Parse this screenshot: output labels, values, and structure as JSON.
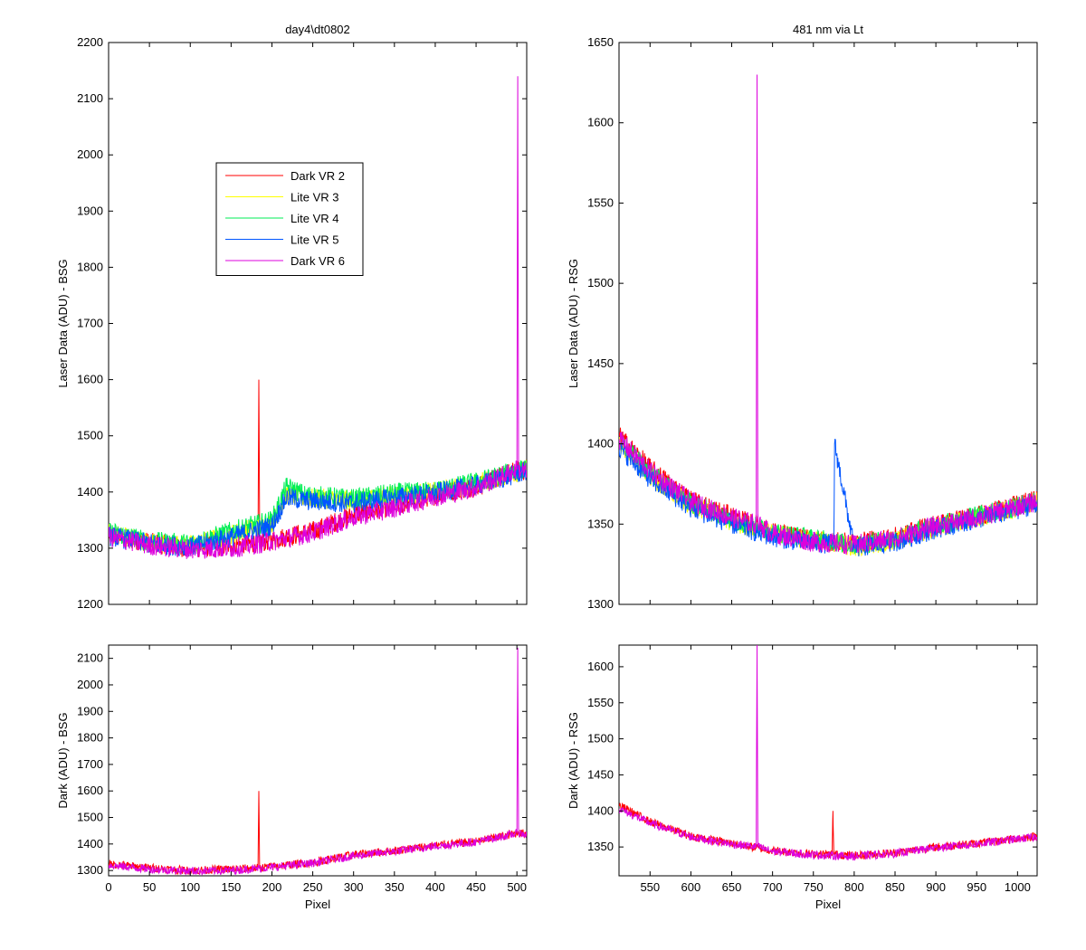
{
  "chart_data": [
    {
      "type": "line",
      "title": "day4\\dt0802",
      "xlabel": "",
      "ylabel": "Laser Data (ADU) - BSG",
      "xlim": [
        0,
        512
      ],
      "ylim": [
        1200,
        2200
      ],
      "xticks": [
        0,
        50,
        100,
        150,
        200,
        250,
        300,
        350,
        400,
        450,
        500
      ],
      "yticks": [
        1200,
        1300,
        1400,
        1500,
        1600,
        1700,
        1800,
        1900,
        2000,
        2100,
        2200
      ],
      "show_xtick_labels": false,
      "legend": {
        "placement": "upper-left-center",
        "entries": [
          "Dark VR 2",
          "Lite VR 3",
          "Lite VR 4",
          "Lite VR 5",
          "Dark VR 6"
        ]
      },
      "series": [
        {
          "name": "Dark VR 2",
          "color": "#ff0000",
          "x": [
            0,
            50,
            100,
            150,
            183,
            184,
            185,
            200,
            250,
            300,
            350,
            400,
            450,
            500,
            502,
            503,
            512
          ],
          "y": [
            1325,
            1310,
            1300,
            1305,
            1310,
            1600,
            1310,
            1315,
            1330,
            1360,
            1375,
            1395,
            1410,
            1440,
            1450,
            1440,
            1440
          ]
        },
        {
          "name": "Lite VR 3",
          "color": "#ffff00",
          "x": [
            0,
            50,
            100,
            150,
            200,
            218,
            240,
            300,
            350,
            400,
            450,
            500,
            512
          ],
          "y": [
            1325,
            1310,
            1305,
            1325,
            1345,
            1395,
            1390,
            1385,
            1395,
            1400,
            1415,
            1435,
            1440
          ]
        },
        {
          "name": "Lite VR 4",
          "color": "#00ee55",
          "x": [
            0,
            50,
            100,
            150,
            200,
            218,
            240,
            300,
            350,
            400,
            450,
            500,
            512
          ],
          "y": [
            1330,
            1312,
            1308,
            1330,
            1350,
            1410,
            1395,
            1388,
            1398,
            1402,
            1418,
            1438,
            1442
          ]
        },
        {
          "name": "Lite VR 5",
          "color": "#0055ff",
          "x": [
            0,
            50,
            100,
            150,
            200,
            218,
            240,
            300,
            350,
            400,
            450,
            500,
            512
          ],
          "y": [
            1322,
            1308,
            1302,
            1320,
            1340,
            1390,
            1385,
            1380,
            1390,
            1398,
            1412,
            1432,
            1438
          ]
        },
        {
          "name": "Dark VR 6",
          "color": "#dd00dd",
          "x": [
            0,
            50,
            100,
            150,
            200,
            250,
            300,
            350,
            400,
            450,
            500,
            501,
            502,
            512
          ],
          "y": [
            1320,
            1305,
            1298,
            1300,
            1312,
            1328,
            1355,
            1372,
            1392,
            1408,
            1440,
            2140,
            1440,
            1435
          ]
        }
      ]
    },
    {
      "type": "line",
      "title": "481 nm via Lt",
      "xlabel": "",
      "ylabel": "Laser Data (ADU) - RSG",
      "xlim": [
        512,
        1024
      ],
      "ylim": [
        1300,
        1650
      ],
      "xticks": [
        550,
        600,
        650,
        700,
        750,
        800,
        850,
        900,
        950,
        1000
      ],
      "yticks": [
        1300,
        1350,
        1400,
        1450,
        1500,
        1550,
        1600,
        1650
      ],
      "show_xtick_labels": false,
      "series": [
        {
          "name": "Dark VR 2",
          "color": "#ff0000",
          "x": [
            512,
            550,
            600,
            650,
            700,
            750,
            800,
            850,
            900,
            950,
            1000,
            1024
          ],
          "y": [
            1405,
            1385,
            1365,
            1355,
            1345,
            1340,
            1338,
            1342,
            1350,
            1355,
            1362,
            1365
          ]
        },
        {
          "name": "Lite VR 3",
          "color": "#ffff00",
          "x": [
            512,
            550,
            600,
            650,
            700,
            750,
            800,
            850,
            900,
            950,
            1000,
            1024
          ],
          "y": [
            1400,
            1380,
            1362,
            1352,
            1344,
            1340,
            1336,
            1340,
            1348,
            1354,
            1360,
            1364
          ]
        },
        {
          "name": "Lite VR 4",
          "color": "#00ee55",
          "x": [
            512,
            550,
            600,
            650,
            700,
            750,
            800,
            850,
            900,
            950,
            1000,
            1024
          ],
          "y": [
            1402,
            1382,
            1363,
            1353,
            1345,
            1341,
            1337,
            1341,
            1349,
            1355,
            1361,
            1365
          ]
        },
        {
          "name": "Lite VR 5",
          "color": "#0055ff",
          "x": [
            512,
            550,
            600,
            650,
            700,
            750,
            775,
            776,
            800,
            850,
            900,
            950,
            1000,
            1024
          ],
          "y": [
            1398,
            1378,
            1360,
            1350,
            1342,
            1338,
            1338,
            1400,
            1335,
            1339,
            1347,
            1353,
            1359,
            1363
          ]
        },
        {
          "name": "Dark VR 6",
          "color": "#dd00dd",
          "x": [
            512,
            550,
            600,
            650,
            680,
            681,
            682,
            700,
            750,
            800,
            850,
            900,
            950,
            1000,
            1024
          ],
          "y": [
            1403,
            1383,
            1364,
            1354,
            1350,
            1630,
            1350,
            1344,
            1339,
            1337,
            1341,
            1349,
            1354,
            1361,
            1364
          ]
        }
      ]
    },
    {
      "type": "line",
      "title": "",
      "xlabel": "Pixel",
      "ylabel": "Dark (ADU) - BSG",
      "xlim": [
        0,
        512
      ],
      "ylim": [
        1280,
        2150
      ],
      "xticks": [
        0,
        50,
        100,
        150,
        200,
        250,
        300,
        350,
        400,
        450,
        500
      ],
      "yticks": [
        1300,
        1400,
        1500,
        1600,
        1700,
        1800,
        1900,
        2000,
        2100
      ],
      "show_xtick_labels": true,
      "series": [
        {
          "name": "Dark VR 2",
          "color": "#ff0000",
          "x": [
            0,
            50,
            100,
            150,
            183,
            184,
            185,
            200,
            250,
            300,
            350,
            400,
            450,
            500,
            502,
            503,
            512
          ],
          "y": [
            1325,
            1310,
            1300,
            1305,
            1310,
            1600,
            1310,
            1315,
            1330,
            1360,
            1375,
            1395,
            1410,
            1440,
            1450,
            1440,
            1440
          ]
        },
        {
          "name": "Dark VR 6",
          "color": "#dd00dd",
          "x": [
            0,
            50,
            100,
            150,
            200,
            250,
            300,
            350,
            400,
            450,
            500,
            501,
            502,
            512
          ],
          "y": [
            1320,
            1305,
            1298,
            1300,
            1312,
            1328,
            1355,
            1372,
            1392,
            1408,
            1440,
            2140,
            1440,
            1435
          ]
        }
      ]
    },
    {
      "type": "line",
      "title": "",
      "xlabel": "Pixel",
      "ylabel": "Dark (ADU) - RSG",
      "xlim": [
        512,
        1024
      ],
      "ylim": [
        1310,
        1630
      ],
      "xticks": [
        550,
        600,
        650,
        700,
        750,
        800,
        850,
        900,
        950,
        1000
      ],
      "yticks": [
        1350,
        1400,
        1450,
        1500,
        1550,
        1600
      ],
      "show_xtick_labels": true,
      "series": [
        {
          "name": "Dark VR 2",
          "color": "#ff0000",
          "x": [
            512,
            550,
            600,
            650,
            700,
            750,
            773,
            774,
            775,
            800,
            850,
            900,
            950,
            1000,
            1024
          ],
          "y": [
            1408,
            1385,
            1365,
            1355,
            1345,
            1340,
            1340,
            1400,
            1340,
            1338,
            1342,
            1350,
            1355,
            1362,
            1365
          ]
        },
        {
          "name": "Dark VR 6",
          "color": "#dd00dd",
          "x": [
            512,
            550,
            600,
            650,
            680,
            681,
            682,
            700,
            750,
            800,
            850,
            900,
            950,
            1000,
            1024
          ],
          "y": [
            1403,
            1383,
            1364,
            1354,
            1350,
            1630,
            1350,
            1344,
            1339,
            1337,
            1341,
            1349,
            1354,
            1361,
            1364
          ]
        }
      ]
    }
  ]
}
